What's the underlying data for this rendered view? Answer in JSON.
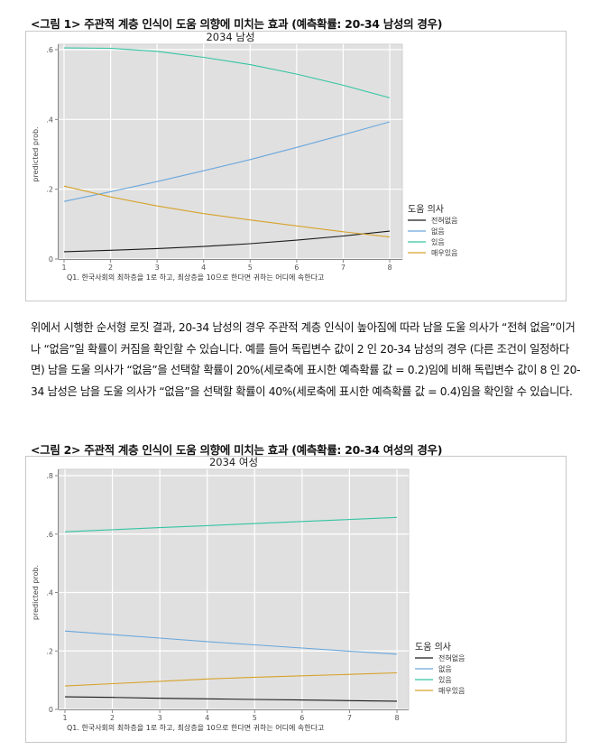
{
  "figure1": {
    "caption": "<그림 1> 주관적 계층 인식이 도움 의향에 미치는 효과 (예측확률: 20-34 남성의 경우)"
  },
  "figure2": {
    "caption": "<그림 2> 주관적 계층 인식이 도움 의향에 미치는 효과 (예측확률: 20-34 여성의 경우)"
  },
  "paragraph": "위에서 시행한 순서형 로짓 결과, 20-34 남성의 경우 주관적 계층 인식이 높아짐에 따라 남을 도울 의사가 “전혀 없음”이거나 “없음”일 확률이 커짐을 확인할 수 있습니다. 예를 들어 독립변수 값이 2 인 20-34 남성의 경우 (다른 조건이 일정하다면) 남을 도울 의사가 “없음”을 선택할 확률이 20%(세로축에 표시한 예측확률 값 = 0.2)임에 비해 독립변수 값이 8 인 20-34 남성은 남을 도울 의사가 “없음”을 선택할 확률이 40%(세로축에 표시한 예측확률 값 = 0.4)임을 확인할 수 있습니다.",
  "chart_data": [
    {
      "type": "line",
      "title": "2034 남성",
      "xlabel": "Q1. 한국사회의 최하층을 1로 하고, 최상층을 10으로 한다면 귀하는 어디에 속한다고",
      "ylabel": "predicted prob.",
      "x": [
        1,
        2,
        3,
        4,
        5,
        6,
        7,
        8
      ],
      "xlim": [
        1,
        8
      ],
      "ylim": [
        0,
        0.6
      ],
      "yticks": [
        0,
        0.2,
        0.4,
        0.6
      ],
      "ytick_labels": [
        "0",
        ".2",
        ".4",
        ".6"
      ],
      "xtick_labels": [
        "1",
        "2",
        "3",
        "4",
        "5",
        "6",
        "7",
        "8"
      ],
      "grid": true,
      "legend_title": "도움 의사",
      "legend_position": "right",
      "series": [
        {
          "name": "전혀없음",
          "color": "#1a1a1a",
          "values": [
            0.021,
            0.025,
            0.03,
            0.036,
            0.044,
            0.054,
            0.066,
            0.08
          ]
        },
        {
          "name": "없음",
          "color": "#6aa7dd",
          "values": [
            0.165,
            0.193,
            0.222,
            0.253,
            0.285,
            0.32,
            0.356,
            0.393
          ]
        },
        {
          "name": "있음",
          "color": "#35c4a4",
          "values": [
            0.605,
            0.604,
            0.595,
            0.578,
            0.557,
            0.53,
            0.498,
            0.462
          ]
        },
        {
          "name": "매우있음",
          "color": "#d7a22a",
          "values": [
            0.209,
            0.178,
            0.152,
            0.13,
            0.112,
            0.095,
            0.078,
            0.063
          ]
        }
      ]
    },
    {
      "type": "line",
      "title": "2034 여성",
      "xlabel": "Q1. 한국사회의 최하층을 1로 하고, 최상층을 10으로 한다면 귀하는 어디에 속한다고",
      "ylabel": "predicted prob.",
      "x": [
        1,
        2,
        3,
        4,
        5,
        6,
        7,
        8
      ],
      "xlim": [
        1,
        8
      ],
      "ylim": [
        0,
        0.8
      ],
      "yticks": [
        0,
        0.2,
        0.4,
        0.6,
        0.8
      ],
      "ytick_labels": [
        "0",
        ".2",
        ".4",
        ".6",
        ".8"
      ],
      "xtick_labels": [
        "1",
        "2",
        "3",
        "4",
        "5",
        "6",
        "7",
        "8"
      ],
      "grid": true,
      "legend_title": "도움 의사",
      "legend_position": "right",
      "series": [
        {
          "name": "전혀없음",
          "color": "#1a1a1a",
          "values": [
            0.043,
            0.041,
            0.038,
            0.036,
            0.034,
            0.032,
            0.03,
            0.028
          ]
        },
        {
          "name": "없음",
          "color": "#6aa7dd",
          "values": [
            0.268,
            0.256,
            0.244,
            0.232,
            0.221,
            0.21,
            0.199,
            0.189
          ]
        },
        {
          "name": "있음",
          "color": "#35c4a4",
          "values": [
            0.608,
            0.615,
            0.622,
            0.629,
            0.636,
            0.643,
            0.65,
            0.657
          ]
        },
        {
          "name": "매우있음",
          "color": "#d7a22a",
          "values": [
            0.08,
            0.088,
            0.096,
            0.104,
            0.11,
            0.115,
            0.12,
            0.125
          ]
        }
      ]
    }
  ]
}
